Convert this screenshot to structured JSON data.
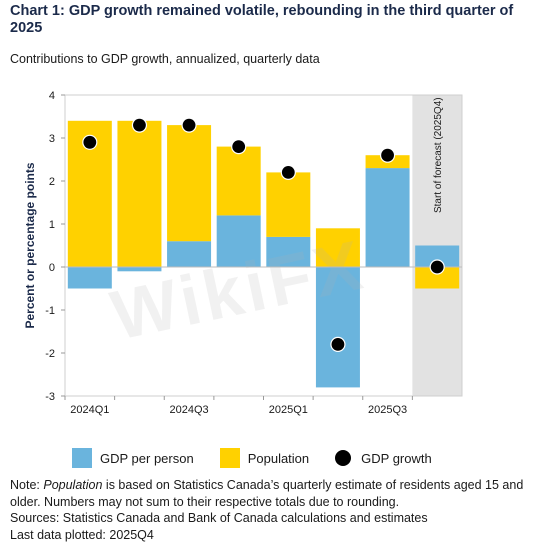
{
  "title": "Chart 1: GDP growth remained volatile, rebounding in the third quarter of 2025",
  "subtitle": "Contributions to GDP growth, annualized, quarterly data",
  "chart_data": {
    "type": "bar",
    "stacked": true,
    "categories": [
      "2024Q1",
      "2024Q2",
      "2024Q3",
      "2024Q4",
      "2025Q1",
      "2025Q2",
      "2025Q3",
      "2025Q4"
    ],
    "tick_labels": [
      "2024Q1",
      "",
      "2024Q3",
      "",
      "2025Q1",
      "",
      "2025Q3",
      ""
    ],
    "series": [
      {
        "name": "GDP per person",
        "color": "#6ab4dd",
        "values": [
          -0.5,
          -0.1,
          0.6,
          1.2,
          0.7,
          -2.8,
          2.3,
          0.5
        ]
      },
      {
        "name": "Population",
        "color": "#ffd100",
        "values": [
          3.4,
          3.4,
          2.7,
          1.6,
          1.5,
          0.9,
          0.3,
          -0.5
        ]
      }
    ],
    "points": {
      "name": "GDP growth",
      "color": "#000000",
      "values": [
        2.9,
        3.3,
        3.3,
        2.8,
        2.2,
        -1.8,
        2.6,
        0.0
      ]
    },
    "ylabel": "Percent or percentage points",
    "ylim": [
      -3,
      4
    ],
    "yticks": [
      -3,
      -2,
      -1,
      0,
      1,
      2,
      3,
      4
    ],
    "forecast_start_index": 7,
    "forecast_label": "Start of forecast (2025Q4)",
    "forecast_shade_color": "#e2e2e2",
    "grid": false
  },
  "legend": {
    "per_person": "GDP per person",
    "population": "Population",
    "growth": "GDP growth"
  },
  "notes": {
    "note_prefix": "Note: ",
    "note_italic": "Population",
    "note_rest": " is based on Statistics Canada’s quarterly estimate of residents aged 15 and older. Numbers may not sum to their respective totals due to rounding.",
    "sources": "Sources: Statistics Canada and Bank of Canada calculations and estimates",
    "last": "Last data plotted: 2025Q4"
  },
  "watermark": "WikiFX"
}
